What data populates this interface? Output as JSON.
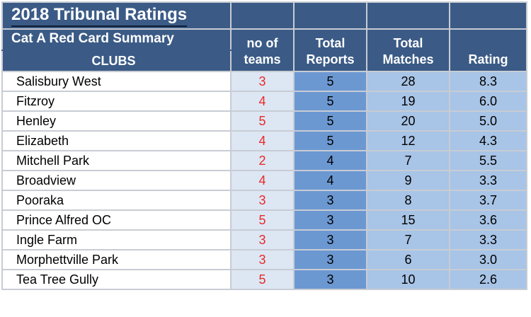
{
  "header": {
    "title": "2018 Tribunal Ratings",
    "subtitle": "Cat A Red Card Summary",
    "clubs_label": "CLUBS",
    "teams_label": "no of teams",
    "reports_label": "Total Reports",
    "matches_label": "Total Matches",
    "rating_label": "Rating"
  },
  "rows": [
    {
      "club": "Salisbury West",
      "teams": "3",
      "reports": "5",
      "matches": "28",
      "rating": "8.3"
    },
    {
      "club": "Fitzroy",
      "teams": "4",
      "reports": "5",
      "matches": "19",
      "rating": "6.0"
    },
    {
      "club": "Henley",
      "teams": "5",
      "reports": "5",
      "matches": "20",
      "rating": "5.0"
    },
    {
      "club": "Elizabeth",
      "teams": "4",
      "reports": "5",
      "matches": "12",
      "rating": "4.3"
    },
    {
      "club": "Mitchell Park",
      "teams": "2",
      "reports": "4",
      "matches": "7",
      "rating": "5.5"
    },
    {
      "club": "Broadview",
      "teams": "4",
      "reports": "4",
      "matches": "9",
      "rating": "3.3"
    },
    {
      "club": "Pooraka",
      "teams": "3",
      "reports": "3",
      "matches": "8",
      "rating": "3.7"
    },
    {
      "club": "Prince Alfred OC",
      "teams": "5",
      "reports": "3",
      "matches": "15",
      "rating": "3.6"
    },
    {
      "club": "Ingle Farm",
      "teams": "3",
      "reports": "3",
      "matches": "7",
      "rating": "3.3"
    },
    {
      "club": "Morphettville Park",
      "teams": "3",
      "reports": "3",
      "matches": "6",
      "rating": "3.0"
    },
    {
      "club": "Tea Tree Gully",
      "teams": "5",
      "reports": "3",
      "matches": "10",
      "rating": "2.6"
    }
  ],
  "colors": {
    "header_bg": "#3b5b86",
    "teams_col_bg": "#dde7f3",
    "teams_text": "#e8292a",
    "reports_col_bg": "#6c98d2",
    "matches_rating_bg": "#a8c4e6"
  }
}
